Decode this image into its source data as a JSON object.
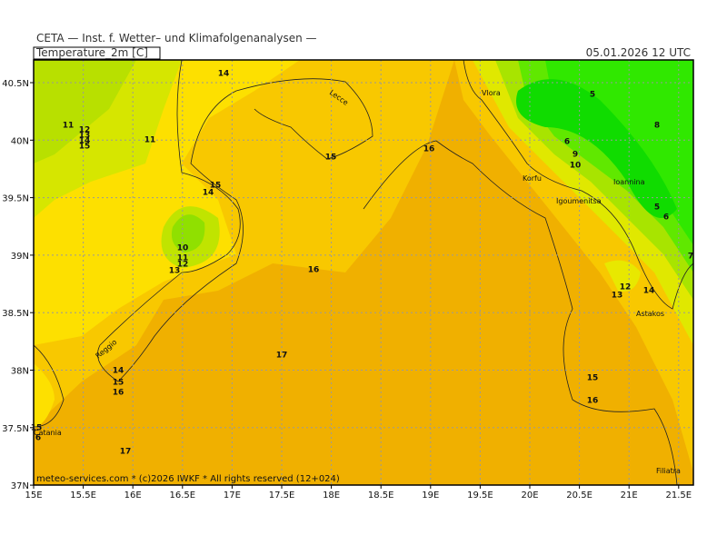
{
  "header": {
    "title": "CETA — Inst. f. Wetter– und Klimafolgenanalysen —",
    "date": "05.01.2026 12 UTC",
    "field": "Temperature_2m [C]"
  },
  "x_axis": [
    "15E",
    "15.5E",
    "16E",
    "16.5E",
    "17E",
    "17.5E",
    "18E",
    "18.5E",
    "19E",
    "19.5E",
    "20E",
    "20.5E",
    "21E",
    "21.5E"
  ],
  "y_axis": [
    "40.5N",
    "40N",
    "39.5N",
    "39N",
    "38.5N",
    "38N",
    "37.5N",
    "37N"
  ],
  "places": [
    "Vlora",
    "Lecce",
    "Korfu",
    "Igoumenitsa",
    "Ioannina",
    "Astakos",
    "Reggio",
    "Catania",
    "Filiatra"
  ],
  "contour_labels": [
    "14",
    "11",
    "12",
    "13",
    "14",
    "15",
    "11",
    "16",
    "15",
    "15",
    "14",
    "10",
    "11",
    "12",
    "13",
    "16",
    "6",
    "9",
    "10",
    "5",
    "8",
    "5",
    "6",
    "7",
    "12",
    "13",
    "14",
    "14",
    "15",
    "16",
    "17",
    "17",
    "15",
    "16",
    "15",
    "6"
  ],
  "footer": "meteo-services.com * (c)2026 IWKF * All rights reserved (12+024)"
}
